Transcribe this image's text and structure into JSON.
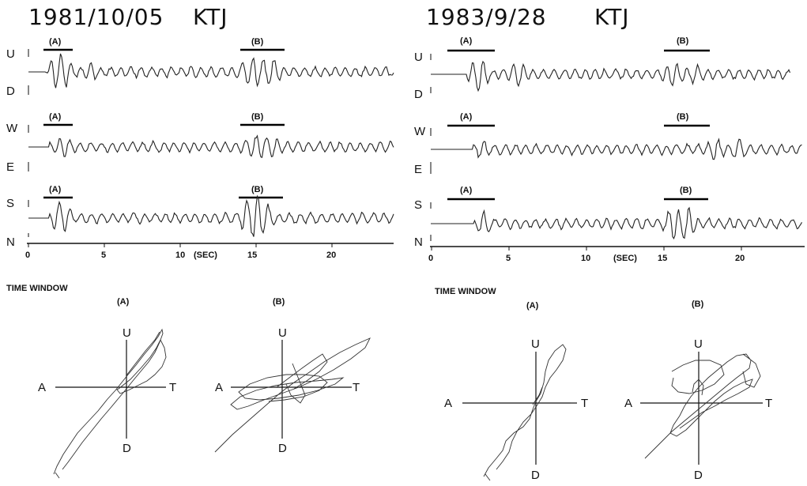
{
  "panels": [
    {
      "id": "left",
      "date": "1981/10/05",
      "station": "KTJ",
      "components": [
        {
          "top": "U",
          "bottom": "D",
          "window_a": "(A)",
          "window_b": "(B)"
        },
        {
          "top": "W",
          "bottom": "E",
          "window_a": "(A)",
          "window_b": "(B)"
        },
        {
          "top": "S",
          "bottom": "N",
          "window_a": "(A)",
          "window_b": "(B)"
        }
      ],
      "time_axis": {
        "ticks": [
          "0",
          "5",
          "10",
          "15",
          "20"
        ],
        "unit": "(SEC)"
      },
      "time_window_label": "TIME WINDOW",
      "hodograms": [
        {
          "window": "(A)",
          "up": "U",
          "down": "D",
          "left": "A",
          "right": "T"
        },
        {
          "window": "(B)",
          "up": "U",
          "down": "D",
          "left": "A",
          "right": "T"
        }
      ]
    },
    {
      "id": "right",
      "date": "1983/9/28",
      "station": "KTJ",
      "components": [
        {
          "top": "U",
          "bottom": "D",
          "window_a": "(A)",
          "window_b": "(B)"
        },
        {
          "top": "W",
          "bottom": "E",
          "window_a": "(A)",
          "window_b": "(B)"
        },
        {
          "top": "S",
          "bottom": "N",
          "window_a": "(A)",
          "window_b": "(B)"
        }
      ],
      "time_axis": {
        "ticks": [
          "0",
          "5",
          "10",
          "15",
          "20"
        ],
        "unit": "(SEC)"
      },
      "time_window_label": "TIME WINDOW",
      "hodograms": [
        {
          "window": "(A)",
          "up": "U",
          "down": "D",
          "left": "A",
          "right": "T"
        },
        {
          "window": "(B)",
          "up": "U",
          "down": "D",
          "left": "A",
          "right": "T"
        }
      ]
    }
  ]
}
